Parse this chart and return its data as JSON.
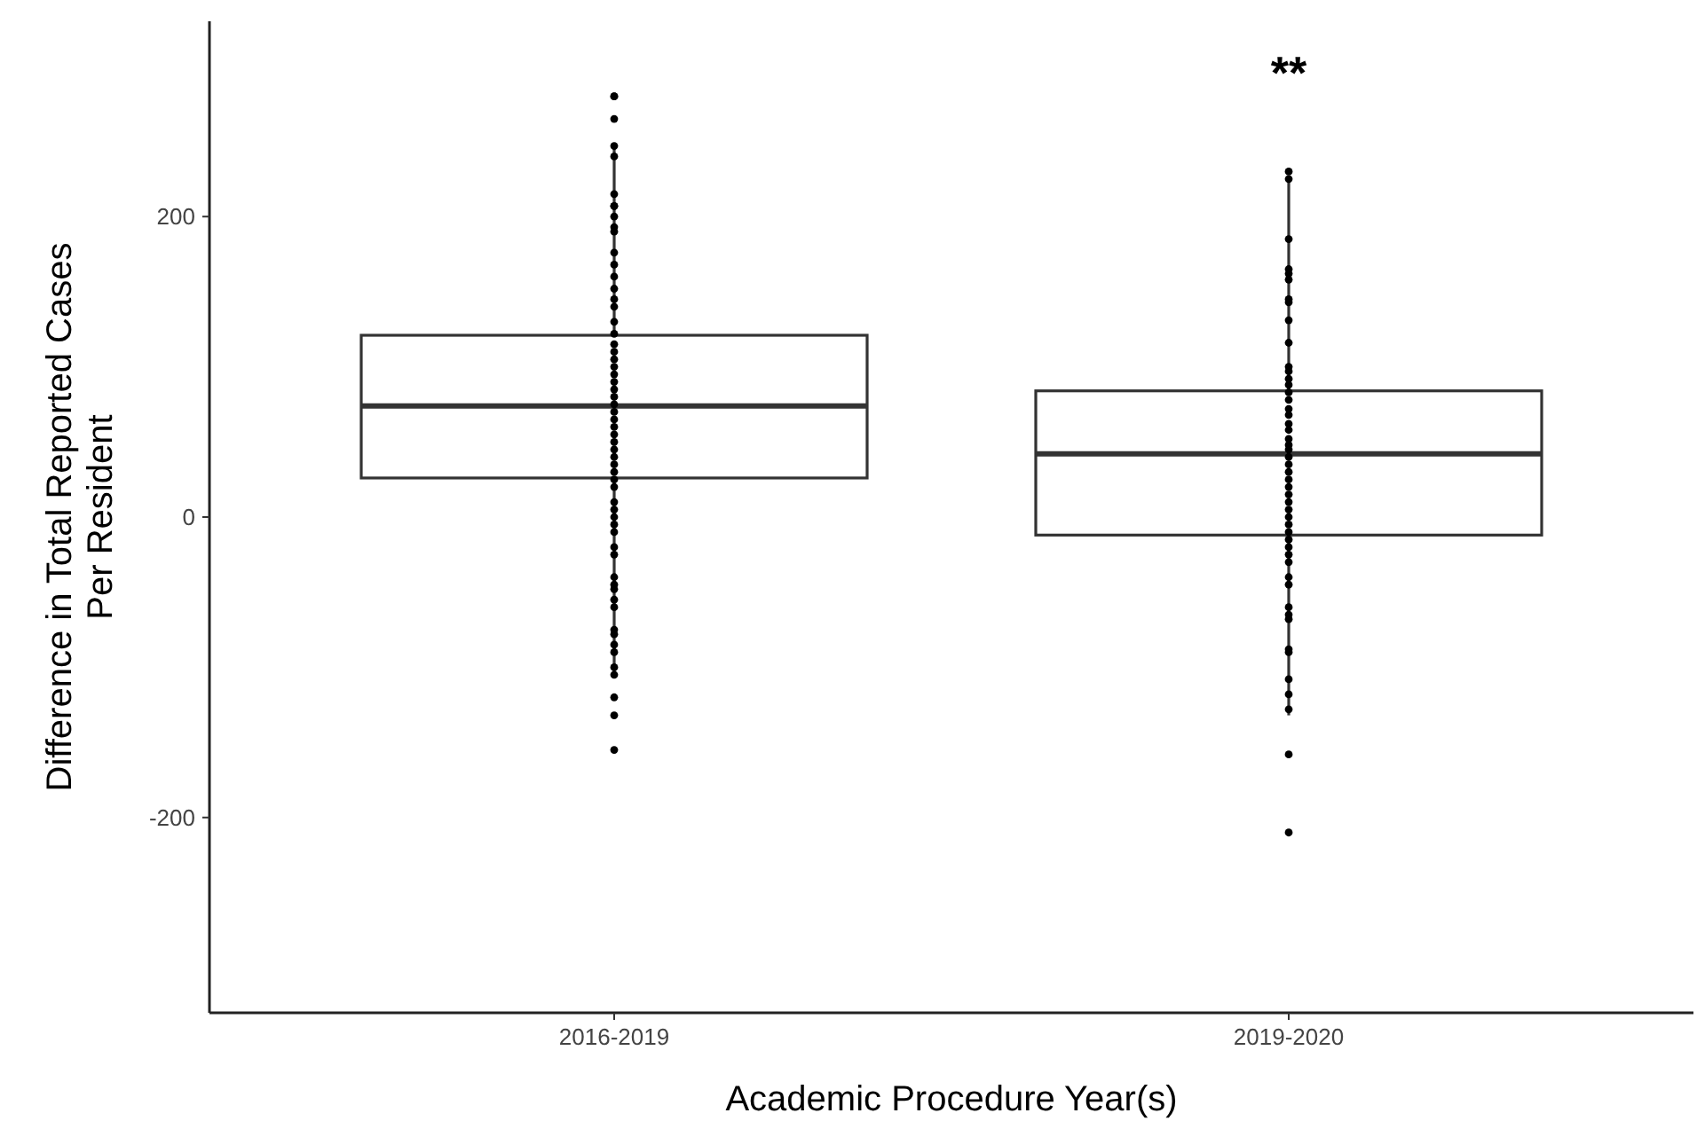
{
  "chart_data": {
    "type": "box",
    "xlabel": "Academic Procedure Year(s)",
    "ylabel": "Difference in Total Reported Cases\nPer Resident",
    "categories": [
      "2016-2019",
      "2019-2020"
    ],
    "ylim": [
      -330,
      330
    ],
    "yticks": [
      -200,
      0,
      200
    ],
    "grid": false,
    "boxes": [
      {
        "low": -106,
        "q1": 26,
        "median": 74,
        "q3": 121,
        "high": 245
      },
      {
        "low": -132,
        "q1": -12,
        "median": 42,
        "q3": 84,
        "high": 224
      }
    ],
    "series": [
      {
        "type": "scatter",
        "color": "#000000",
        "marker": "circle",
        "x": [
          "2016-2019",
          "2016-2019",
          "2016-2019",
          "2016-2019",
          "2016-2019",
          "2016-2019",
          "2016-2019",
          "2016-2019",
          "2016-2019",
          "2016-2019",
          "2016-2019",
          "2016-2019",
          "2016-2019",
          "2016-2019",
          "2016-2019",
          "2016-2019",
          "2016-2019",
          "2016-2019",
          "2016-2019",
          "2016-2019",
          "2016-2019",
          "2016-2019",
          "2016-2019",
          "2016-2019",
          "2016-2019",
          "2016-2019",
          "2016-2019",
          "2016-2019",
          "2016-2019",
          "2016-2019",
          "2016-2019",
          "2016-2019",
          "2016-2019",
          "2016-2019",
          "2016-2019",
          "2016-2019",
          "2016-2019",
          "2016-2019",
          "2016-2019",
          "2016-2019",
          "2016-2019",
          "2016-2019",
          "2016-2019",
          "2016-2019",
          "2016-2019",
          "2016-2019",
          "2016-2019",
          "2016-2019",
          "2016-2019",
          "2016-2019",
          "2016-2019",
          "2016-2019",
          "2016-2019",
          "2016-2019",
          "2016-2019",
          "2016-2019",
          "2016-2019",
          "2016-2019",
          "2016-2019",
          "2016-2019",
          "2019-2020",
          "2019-2020",
          "2019-2020",
          "2019-2020",
          "2019-2020",
          "2019-2020",
          "2019-2020",
          "2019-2020",
          "2019-2020",
          "2019-2020",
          "2019-2020",
          "2019-2020",
          "2019-2020",
          "2019-2020",
          "2019-2020",
          "2019-2020",
          "2019-2020",
          "2019-2020",
          "2019-2020",
          "2019-2020",
          "2019-2020",
          "2019-2020",
          "2019-2020",
          "2019-2020",
          "2019-2020",
          "2019-2020",
          "2019-2020",
          "2019-2020",
          "2019-2020",
          "2019-2020",
          "2019-2020",
          "2019-2020",
          "2019-2020",
          "2019-2020",
          "2019-2020",
          "2019-2020",
          "2019-2020",
          "2019-2020",
          "2019-2020",
          "2019-2020",
          "2019-2020",
          "2019-2020",
          "2019-2020",
          "2019-2020",
          "2019-2020",
          "2019-2020",
          "2019-2020",
          "2019-2020",
          "2019-2020",
          "2019-2020"
        ],
        "values": [
          280,
          280,
          265,
          247,
          240,
          215,
          207,
          207,
          200,
          193,
          190,
          176,
          168,
          160,
          152,
          145,
          140,
          130,
          122,
          115,
          110,
          105,
          100,
          95,
          90,
          85,
          80,
          75,
          70,
          65,
          60,
          55,
          50,
          45,
          40,
          35,
          30,
          25,
          20,
          10,
          5,
          0,
          -5,
          -10,
          -20,
          -25,
          -40,
          -45,
          -48,
          -55,
          -60,
          -75,
          -78,
          -85,
          -90,
          -105,
          -120,
          -132,
          -155,
          -100,
          230,
          225,
          185,
          165,
          162,
          158,
          145,
          143,
          131,
          116,
          100,
          97,
          92,
          88,
          83,
          78,
          72,
          68,
          62,
          58,
          52,
          48,
          45,
          40,
          35,
          30,
          25,
          20,
          15,
          10,
          5,
          0,
          -5,
          -10,
          -15,
          -20,
          -25,
          -30,
          -40,
          -45,
          -60,
          -65,
          -68,
          -88,
          -90,
          -108,
          -118,
          -128,
          -158,
          -210
        ]
      }
    ],
    "annotations": [
      "**"
    ]
  }
}
